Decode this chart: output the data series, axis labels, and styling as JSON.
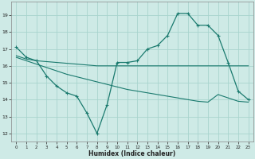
{
  "xlabel": "Humidex (Indice chaleur)",
  "bg_color": "#ceeae6",
  "grid_color": "#a8d4ce",
  "line_color": "#1a7a6e",
  "xlim": [
    -0.5,
    23.5
  ],
  "ylim": [
    11.5,
    19.8
  ],
  "yticks": [
    12,
    13,
    14,
    15,
    16,
    17,
    18,
    19
  ],
  "xticks": [
    0,
    1,
    2,
    3,
    4,
    5,
    6,
    7,
    8,
    9,
    10,
    11,
    12,
    13,
    14,
    15,
    16,
    17,
    18,
    19,
    20,
    21,
    22,
    23
  ],
  "line1_x": [
    0,
    1,
    2,
    3,
    4,
    5,
    6,
    7,
    8,
    9,
    10,
    11,
    12,
    13,
    14,
    15,
    16,
    17,
    18,
    19,
    20,
    21,
    22,
    23
  ],
  "line1_y": [
    17.1,
    16.5,
    16.3,
    15.4,
    14.8,
    14.4,
    14.2,
    13.2,
    12.0,
    13.7,
    16.2,
    16.2,
    16.3,
    17.0,
    17.2,
    17.8,
    19.1,
    19.1,
    18.4,
    18.4,
    17.8,
    16.2,
    14.5,
    14.0
  ],
  "line2_x": [
    0,
    1,
    2,
    3,
    4,
    5,
    6,
    7,
    8,
    9,
    10,
    11,
    12,
    13,
    14,
    15,
    16,
    17,
    18,
    19,
    20,
    21,
    22,
    23
  ],
  "line2_y": [
    16.6,
    16.4,
    16.3,
    16.25,
    16.2,
    16.15,
    16.1,
    16.05,
    16.0,
    16.0,
    16.0,
    16.0,
    16.0,
    16.0,
    16.0,
    16.0,
    16.0,
    16.0,
    16.0,
    16.0,
    16.0,
    16.0,
    16.0,
    16.0
  ],
  "line3_x": [
    0,
    1,
    2,
    3,
    4,
    5,
    6,
    7,
    8,
    9,
    10,
    11,
    12,
    13,
    14,
    15,
    16,
    17,
    18,
    19,
    20,
    21,
    22,
    23
  ],
  "line3_y": [
    16.5,
    16.3,
    16.1,
    15.9,
    15.7,
    15.5,
    15.35,
    15.2,
    15.05,
    14.9,
    14.75,
    14.6,
    14.5,
    14.4,
    14.3,
    14.2,
    14.1,
    14.0,
    13.9,
    13.85,
    14.3,
    14.1,
    13.9,
    13.85
  ]
}
